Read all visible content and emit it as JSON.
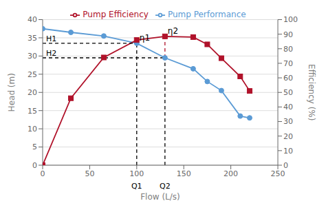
{
  "chart_data": {
    "type": "line",
    "xlabel": "Flow (L/s)",
    "ylabel": "Head (m)",
    "y2label": "Efficiency (%)",
    "x": [
      0,
      30,
      65,
      100,
      130,
      160,
      175,
      190,
      210,
      220
    ],
    "xlim": [
      0,
      250
    ],
    "xticks": [
      0,
      50,
      100,
      150,
      200,
      250
    ],
    "ylim": [
      0,
      40
    ],
    "yticks": [
      0,
      5,
      10,
      15,
      20,
      25,
      30,
      35,
      40
    ],
    "y2lim": [
      0,
      100
    ],
    "y2ticks": [
      0,
      10,
      20,
      30,
      40,
      50,
      60,
      70,
      80,
      90,
      100
    ],
    "grid": "y",
    "legend": "top",
    "series": [
      {
        "name": "Pump Performance",
        "color": "#5b9bd5",
        "marker": "circle",
        "line_style": "solid",
        "values": [
          37.5,
          36.5,
          35.5,
          33.5,
          29.5,
          26.5,
          23.0,
          20.5,
          13.5,
          13.0
        ]
      },
      {
        "name": "Pump Efficiency",
        "color": "#b0122a",
        "marker": "square",
        "line_style": "solid",
        "axis": "y2",
        "values": [
          0,
          46,
          74,
          86,
          88.5,
          88,
          83,
          73.5,
          61,
          51
        ]
      }
    ],
    "reference_lines": [
      {
        "x": [
          100,
          100
        ],
        "y": [
          0,
          33.5
        ],
        "color": "#000000",
        "line_style": "dashed"
      },
      {
        "x": [
          130,
          130
        ],
        "y": [
          0,
          29.5
        ],
        "color": "#000000",
        "line_style": "dashed"
      },
      {
        "x": [
          130,
          130
        ],
        "y": [
          29.5,
          35.4
        ],
        "color": "#b0122a",
        "line_style": "dashed"
      },
      {
        "x": [
          0,
          100
        ],
        "y": [
          33.5,
          33.5
        ],
        "color": "#000000",
        "line_style": "dashed"
      },
      {
        "x": [
          0,
          130
        ],
        "y": [
          29.5,
          29.5
        ],
        "color": "#000000",
        "line_style": "dashed"
      }
    ],
    "annotations": [
      {
        "text": "H1",
        "y": 33.5
      },
      {
        "text": "H2",
        "y": 29.5
      },
      {
        "text": "Q1",
        "x": 100
      },
      {
        "text": "Q2",
        "x": 130
      },
      {
        "text": "η1",
        "x": 100,
        "y": 33.5
      },
      {
        "text": "η2",
        "x": 130,
        "y": 35.4
      }
    ]
  }
}
